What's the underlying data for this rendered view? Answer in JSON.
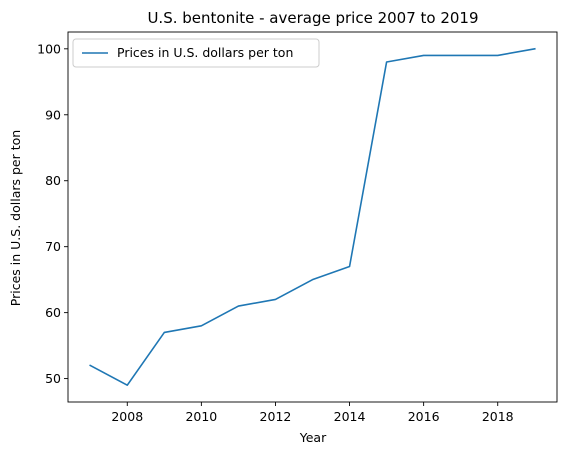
{
  "chart_data": {
    "type": "line",
    "title": "U.S. bentonite - average price 2007 to 2019",
    "xlabel": "Year",
    "ylabel": "Prices in U.S. dollars per ton",
    "xlim": [
      2006.4,
      2019.6
    ],
    "ylim": [
      46.45,
      102.55
    ],
    "xticks": [
      2008,
      2010,
      2012,
      2014,
      2016,
      2018
    ],
    "yticks": [
      50,
      60,
      70,
      80,
      90,
      100
    ],
    "grid": false,
    "legend_position": "upper-left",
    "series": [
      {
        "name": "Prices in U.S. dollars per ton",
        "color": "#1f77b4",
        "x": [
          2007,
          2008,
          2009,
          2010,
          2011,
          2012,
          2013,
          2014,
          2015,
          2016,
          2017,
          2018,
          2019
        ],
        "values": [
          52,
          49,
          57,
          58,
          61,
          62,
          65,
          67,
          98,
          99,
          99,
          99,
          100
        ]
      }
    ]
  }
}
